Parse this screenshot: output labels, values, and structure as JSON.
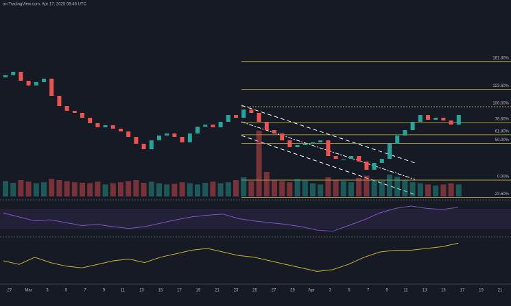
{
  "chart_data": {
    "type": "candlestick",
    "header": "on TradingView.com, Apr 17, 2025 08:46 UTC",
    "x_labels": [
      "27",
      "Mar",
      "3",
      "5",
      "7",
      "9",
      "11",
      "13",
      "15",
      "17",
      "19",
      "21",
      "23",
      "25",
      "27",
      "29",
      "Apr",
      "3",
      "5",
      "7",
      "9",
      "11",
      "13",
      "15",
      "17",
      "19",
      "21"
    ],
    "ylim": [
      1224,
      2988
    ],
    "open": [
      2380,
      2401,
      2433,
      2348,
      2303,
      2335,
      2368,
      2204,
      2106,
      2061,
      2041,
      1995,
      1943,
      1904,
      1923,
      1891,
      1864,
      1812,
      1747,
      1694,
      1779,
      1825,
      1845,
      1812,
      1760,
      1845,
      1910,
      1930,
      1904,
      1956,
      2021,
      1995,
      2074,
      2041,
      1956,
      1877,
      1845,
      1779,
      1714,
      1734,
      1747,
      1760,
      1779,
      1629,
      1603,
      1603,
      1629,
      1577,
      1498,
      1564,
      1603,
      1747,
      1825,
      1877,
      1956,
      2021,
      1976,
      1995,
      1969,
      1930
    ],
    "close": [
      2401,
      2433,
      2348,
      2303,
      2335,
      2368,
      2204,
      2106,
      2061,
      2041,
      1995,
      1943,
      1904,
      1923,
      1891,
      1864,
      1812,
      1747,
      1694,
      1779,
      1825,
      1845,
      1812,
      1760,
      1845,
      1910,
      1930,
      1904,
      1956,
      2021,
      1995,
      2074,
      2041,
      1956,
      1877,
      1845,
      1779,
      1714,
      1734,
      1747,
      1760,
      1779,
      1629,
      1603,
      1603,
      1629,
      1577,
      1498,
      1564,
      1603,
      1747,
      1825,
      1877,
      1956,
      2021,
      1976,
      1995,
      1969,
      1930,
      2021
    ],
    "volume": [
      28,
      25,
      30,
      27,
      24,
      26,
      32,
      30,
      28,
      26,
      25,
      24,
      27,
      22,
      24,
      26,
      28,
      30,
      25,
      27,
      24,
      22,
      23,
      26,
      24,
      22,
      25,
      27,
      24,
      26,
      30,
      35,
      28,
      120,
      45,
      30,
      28,
      26,
      32,
      30,
      24,
      22,
      35,
      30,
      28,
      26,
      34,
      38,
      30,
      28,
      40,
      36,
      30,
      26,
      24,
      22,
      20,
      22,
      24,
      22
    ],
    "vlim": [
      0,
      150
    ],
    "green": "#26a69a",
    "red": "#ef5350",
    "fib_anchor": [
      1400,
      2100
    ],
    "fib_levels": [
      {
        "ratio": 161.8,
        "label": "161.80%"
      },
      {
        "ratio": 123.6,
        "label": "123.60%"
      },
      {
        "ratio": 100,
        "label": "100.00%"
      },
      {
        "ratio": 78.6,
        "label": "78.60%"
      },
      {
        "ratio": 61.8,
        "label": "61.80%"
      },
      {
        "ratio": 50,
        "label": "50.00%"
      },
      {
        "ratio": 0,
        "label": "0.00%"
      },
      {
        "ratio": -23.6,
        "label": "-23.60%"
      }
    ],
    "fib_color": "#c9b44a",
    "rsi": {
      "color": "#7e57c2",
      "ylim": [
        25,
        80
      ],
      "values": [
        62,
        55,
        48,
        50,
        45,
        40,
        42,
        38,
        35,
        38,
        44,
        50,
        55,
        58,
        60,
        52,
        48,
        45,
        42,
        38,
        32,
        30,
        40,
        50,
        62,
        70,
        74,
        70,
        68,
        72
      ]
    },
    "oscillator": {
      "color": "#c6b62d",
      "ylim": [
        -60,
        60
      ],
      "values": [
        0,
        -10,
        10,
        -5,
        -15,
        -20,
        -10,
        0,
        5,
        -5,
        10,
        20,
        30,
        35,
        25,
        15,
        10,
        0,
        -10,
        -20,
        -30,
        -25,
        -10,
        10,
        25,
        30,
        30,
        35,
        40,
        50
      ]
    }
  }
}
